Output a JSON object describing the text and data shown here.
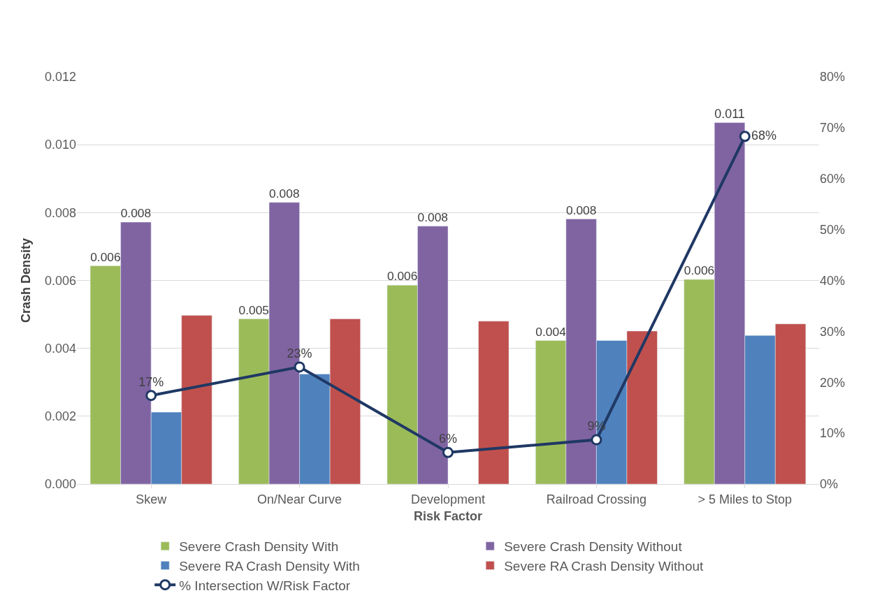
{
  "chart_data": {
    "type": "bar",
    "xlabel": "Risk Factor",
    "ylabel": "Crash Density",
    "categories": [
      "Skew",
      "On/Near Curve",
      "Development",
      "Railroad Crossing",
      "> 5 Miles to Stop"
    ],
    "series": [
      {
        "name": "Severe Crash Density With",
        "color": "#9bbb59",
        "values": [
          0.00643,
          0.00487,
          0.00586,
          0.00423,
          0.00603
        ],
        "value_labels": [
          "0.006",
          "0.005",
          "0.006",
          "0.004",
          "0.006"
        ]
      },
      {
        "name": "Severe Crash Density Without",
        "color": "#8064a2",
        "values": [
          0.00772,
          0.0083,
          0.0076,
          0.00781,
          0.01065
        ],
        "value_labels": [
          "0.008",
          "0.008",
          "0.008",
          "0.008",
          "0.011"
        ]
      },
      {
        "name": "Severe RA Crash Density With",
        "color": "#4f81bd",
        "values": [
          0.00212,
          0.00324,
          null,
          0.00423,
          0.00438
        ]
      },
      {
        "name": "Severe RA Crash Density Without",
        "color": "#c0504d",
        "values": [
          0.00497,
          0.00487,
          0.0048,
          0.00451,
          0.00472
        ]
      },
      {
        "name": "% Intersection W/Risk Factor",
        "type": "line",
        "axis": "y2",
        "color": "#1f3864",
        "marker": "circle",
        "values": [
          17.4,
          23.0,
          6.2,
          8.7,
          68.3
        ],
        "value_labels": [
          "17%",
          "23%",
          "6%",
          "9%",
          "68%"
        ]
      }
    ],
    "ylim": [
      0,
      0.012
    ],
    "yticks": [
      {
        "value": 0,
        "label": "0.000"
      },
      {
        "value": 0.002,
        "label": "0.002"
      },
      {
        "value": 0.004,
        "label": "0.004"
      },
      {
        "value": 0.006,
        "label": "0.006"
      },
      {
        "value": 0.008,
        "label": "0.008"
      },
      {
        "value": 0.01,
        "label": "0.010"
      },
      {
        "value": 0.012,
        "label": "0.012"
      }
    ],
    "y2lim": [
      0,
      80
    ],
    "y2ticks": [
      {
        "value": 0,
        "label": "0%"
      },
      {
        "value": 10,
        "label": "10%"
      },
      {
        "value": 20,
        "label": "20%"
      },
      {
        "value": 30,
        "label": "30%"
      },
      {
        "value": 40,
        "label": "40%"
      },
      {
        "value": 50,
        "label": "50%"
      },
      {
        "value": 60,
        "label": "60%"
      },
      {
        "value": 70,
        "label": "70%"
      },
      {
        "value": 80,
        "label": "80%"
      }
    ],
    "grid": "y",
    "legend": "bottom"
  }
}
